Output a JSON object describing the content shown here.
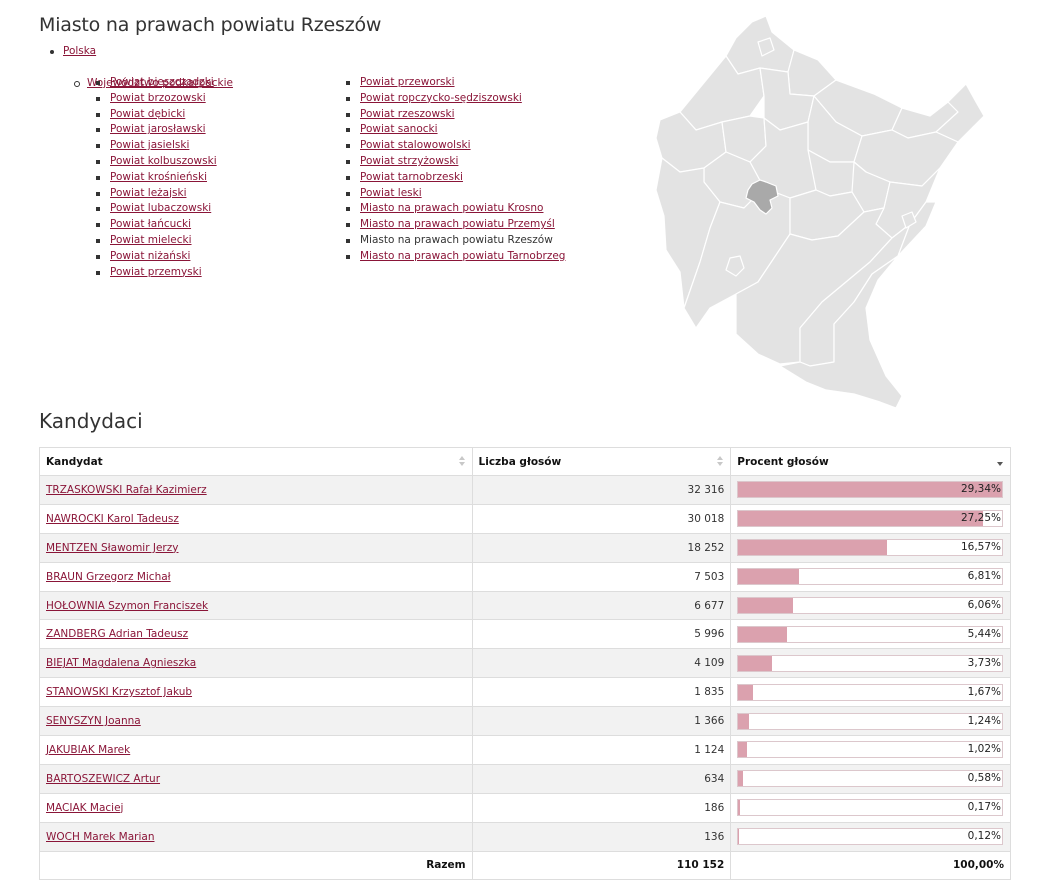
{
  "page": {
    "title": "Miasto na prawach powiatu Rzeszów"
  },
  "breadcrumbs": {
    "country": "Polska",
    "voivodeship": "Województwo podkarpackie",
    "districts_col1": [
      "Powiat bieszczadzki",
      "Powiat brzozowski",
      "Powiat dębicki",
      "Powiat jarosławski",
      "Powiat jasielski",
      "Powiat kolbuszowski",
      "Powiat krośnieński",
      "Powiat leżajski",
      "Powiat lubaczowski",
      "Powiat łańcucki",
      "Powiat mielecki",
      "Powiat niżański",
      "Powiat przemyski"
    ],
    "districts_col2": [
      "Powiat przeworski",
      "Powiat ropczycko-sędziszowski",
      "Powiat rzeszowski",
      "Powiat sanocki",
      "Powiat stalowowolski",
      "Powiat strzyżowski",
      "Powiat tarnobrzeski",
      "Powiat leski",
      "Miasto na prawach powiatu Krosno",
      "Miasto na prawach powiatu Przemyśl",
      "Miasto na prawach powiatu Rzeszów",
      "Miasto na prawach powiatu Tarnobrzeg"
    ],
    "current_index_col2": 10
  },
  "section": {
    "title": "Kandydaci"
  },
  "table": {
    "headers": {
      "candidate": "Kandydat",
      "votes": "Liczba głosów",
      "percent": "Procent głosów"
    },
    "rows": [
      {
        "name": "TRZASKOWSKI Rafał Kazimierz",
        "votes": "32 316",
        "percent": "29,34%",
        "share": 29.34
      },
      {
        "name": "NAWROCKI Karol Tadeusz",
        "votes": "30 018",
        "percent": "27,25%",
        "share": 27.25
      },
      {
        "name": "MENTZEN Sławomir Jerzy",
        "votes": "18 252",
        "percent": "16,57%",
        "share": 16.57
      },
      {
        "name": "BRAUN Grzegorz Michał",
        "votes": "7 503",
        "percent": "6,81%",
        "share": 6.81
      },
      {
        "name": "HOŁOWNIA Szymon Franciszek",
        "votes": "6 677",
        "percent": "6,06%",
        "share": 6.06
      },
      {
        "name": "ZANDBERG Adrian Tadeusz",
        "votes": "5 996",
        "percent": "5,44%",
        "share": 5.44
      },
      {
        "name": "BIEJAT Magdalena Agnieszka",
        "votes": "4 109",
        "percent": "3,73%",
        "share": 3.73
      },
      {
        "name": "STANOWSKI Krzysztof Jakub",
        "votes": "1 835",
        "percent": "1,67%",
        "share": 1.67
      },
      {
        "name": "SENYSZYN Joanna",
        "votes": "1 366",
        "percent": "1,24%",
        "share": 1.24
      },
      {
        "name": "JAKUBIAK Marek",
        "votes": "1 124",
        "percent": "1,02%",
        "share": 1.02
      },
      {
        "name": "BARTOSZEWICZ Artur",
        "votes": "634",
        "percent": "0,58%",
        "share": 0.58
      },
      {
        "name": "MACIAK Maciej",
        "votes": "186",
        "percent": "0,17%",
        "share": 0.17
      },
      {
        "name": "WOCH Marek Marian",
        "votes": "136",
        "percent": "0,12%",
        "share": 0.12
      }
    ],
    "bar_max_share": 29.34,
    "footer": {
      "label": "Razem",
      "votes": "110 152",
      "percent": "100,00%"
    }
  },
  "colors": {
    "link": "#8a1538",
    "bar_fill": "#dba1ae",
    "map_fill": "#e3e3e3",
    "map_highlight": "#a9a9a9"
  }
}
